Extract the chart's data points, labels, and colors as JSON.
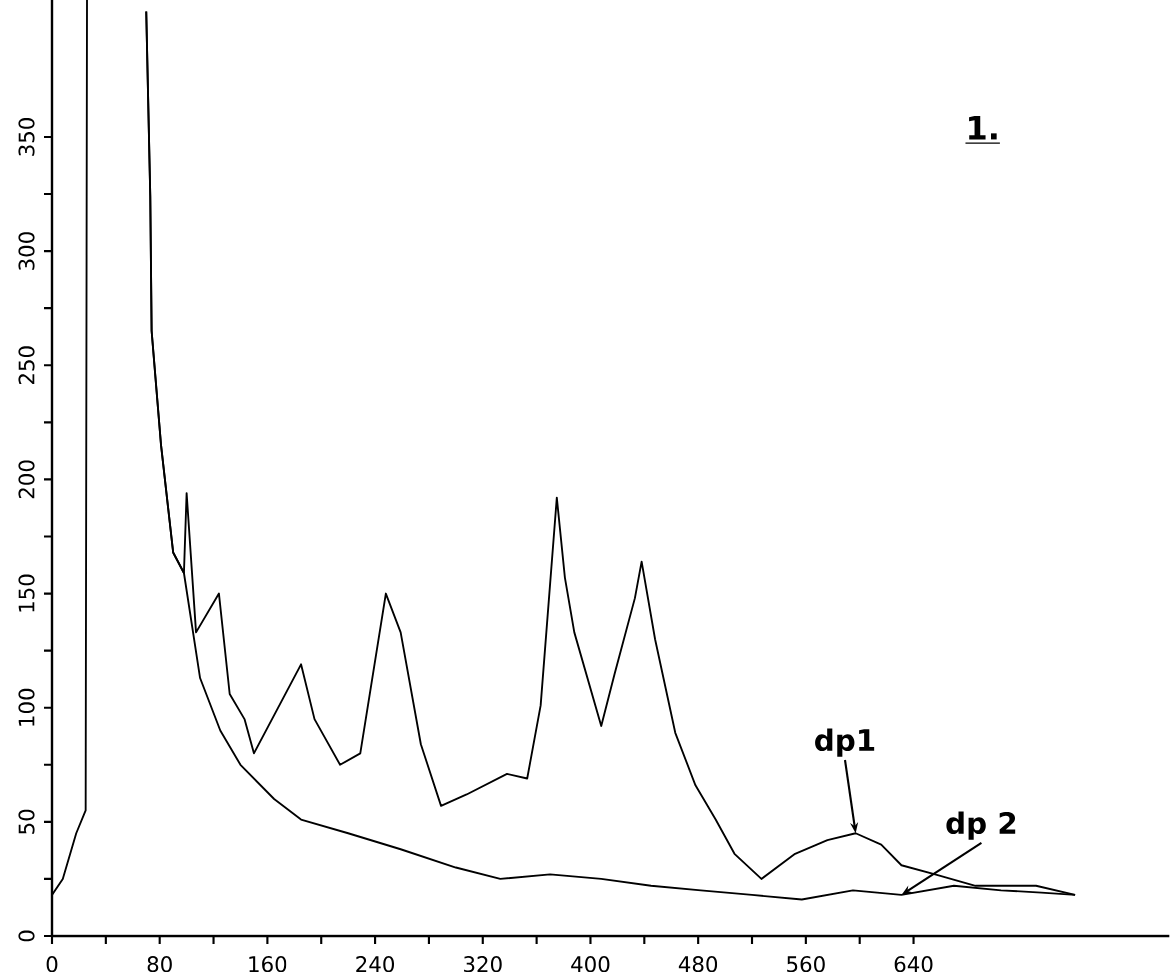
{
  "chart_data": {
    "type": "line",
    "xlim": [
      0,
      830
    ],
    "ylim": [
      0,
      410
    ],
    "xticks": [
      0,
      {
        "value": 40,
        "label": null
      },
      80,
      {
        "value": 120,
        "label": null
      },
      160,
      {
        "value": 200,
        "label": null
      },
      240,
      {
        "value": 280,
        "label": null
      },
      320,
      {
        "value": 360,
        "label": null
      },
      400,
      {
        "value": 440,
        "label": null
      },
      480,
      {
        "value": 520,
        "label": null
      },
      560,
      {
        "value": 600,
        "label": null
      },
      640
    ],
    "yticks": [
      0,
      {
        "value": 25,
        "label": null
      },
      50,
      {
        "value": 75,
        "label": null
      },
      100,
      {
        "value": 125,
        "label": null
      },
      150,
      {
        "value": 175,
        "label": null
      },
      200,
      {
        "value": 225,
        "label": null
      },
      250,
      {
        "value": 275,
        "label": null
      },
      300,
      {
        "value": 325,
        "label": null
      },
      350
    ],
    "annotations": [
      "1.",
      {
        "text": "dp1",
        "x": 597,
        "y": 45
      },
      {
        "text": "dp 2",
        "x": 631,
        "y": 18
      }
    ],
    "series": [
      {
        "color": "#000000",
        "x": [
          0,
          8,
          18,
          25,
          26,
          27,
          70,
          73,
          74,
          81,
          90,
          98,
          100,
          107,
          124,
          132,
          143,
          150,
          185,
          195,
          214,
          229,
          248,
          259,
          274,
          289,
          308,
          338,
          353,
          363,
          375,
          381,
          388,
          408,
          418,
          433,
          438,
          448,
          463,
          478,
          493,
          507,
          527,
          552,
          576,
          597,
          616,
          631,
          656,
          686,
          731,
          760
        ],
        "values": [
          18,
          25,
          45,
          55,
          410,
          null,
          405,
          324,
          265,
          215,
          168,
          159,
          194,
          133,
          150,
          106,
          95,
          80,
          119,
          95,
          75,
          80,
          150,
          133,
          84,
          57,
          62,
          71,
          69,
          101,
          192,
          157,
          133,
          92,
          115,
          148,
          164,
          130,
          89,
          66,
          51,
          36,
          25,
          36,
          42,
          45,
          40,
          31,
          27,
          22,
          22,
          18
        ]
      },
      {
        "color": "#000000",
        "x": [
          70,
          73,
          74,
          81,
          90,
          98,
          110,
          125,
          140,
          165,
          185,
          220,
          259,
          300,
          333,
          370,
          408,
          445,
          482,
          520,
          557,
          595,
          631,
          670,
          705,
          735,
          760
        ],
        "values": [
          405,
          324,
          265,
          215,
          168,
          159,
          113,
          90,
          75,
          60,
          51,
          45,
          38,
          30,
          25,
          27,
          25,
          22,
          20,
          18,
          16,
          20,
          18,
          22,
          20,
          19,
          18
        ]
      }
    ]
  }
}
